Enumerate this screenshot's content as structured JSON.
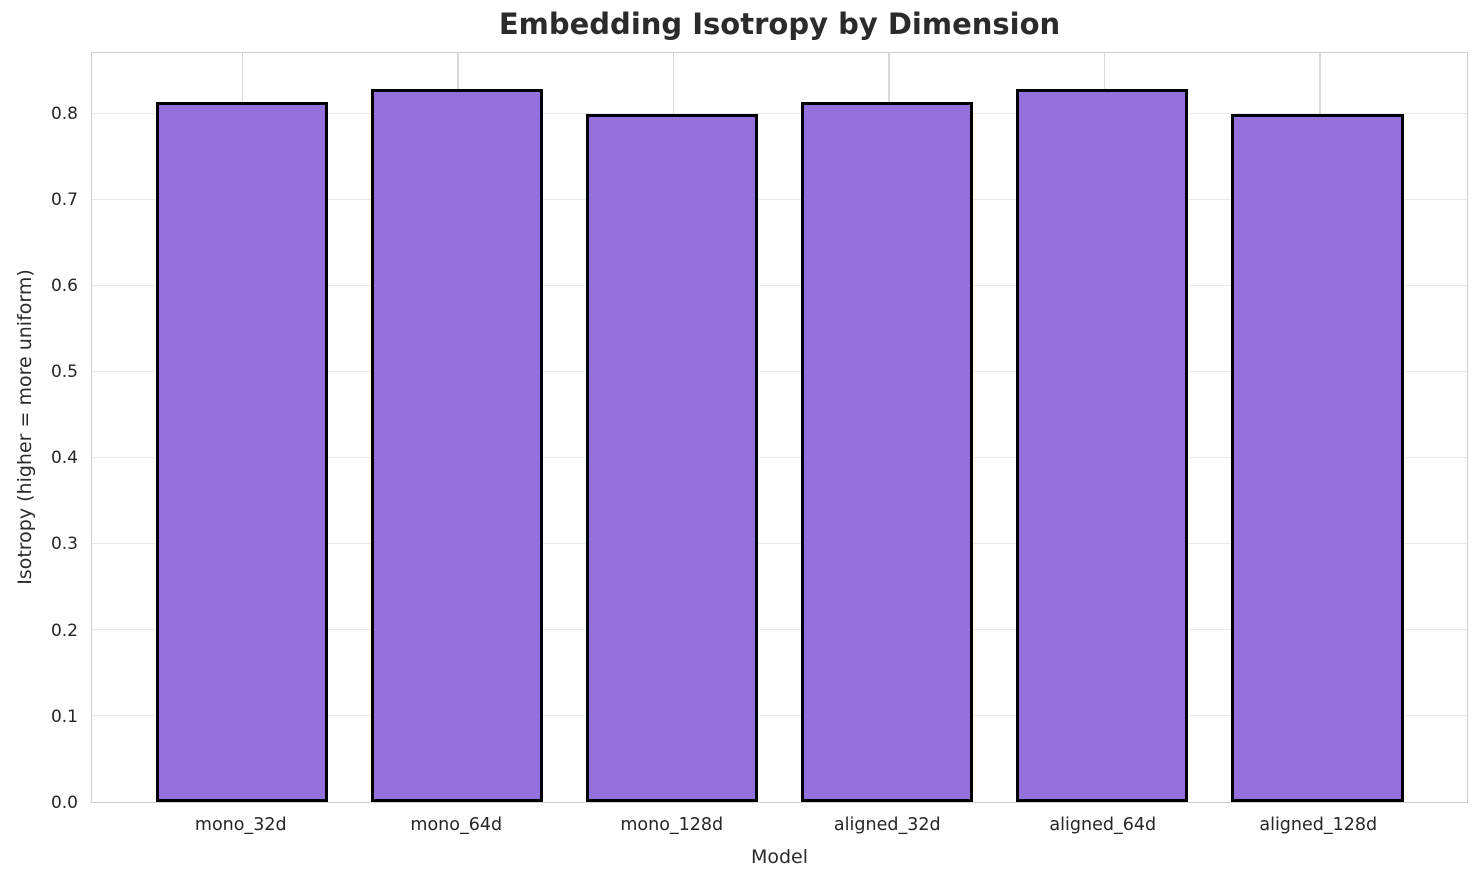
{
  "chart_data": {
    "type": "bar",
    "title": "Embedding Isotropy by Dimension",
    "xlabel": "Model",
    "ylabel": "Isotropy (higher = more uniform)",
    "categories": [
      "mono_32d",
      "mono_64d",
      "mono_128d",
      "aligned_32d",
      "aligned_64d",
      "aligned_128d"
    ],
    "values": [
      0.815,
      0.83,
      0.8,
      0.815,
      0.83,
      0.8
    ],
    "ylim": [
      0,
      0.8715
    ],
    "yticks": [
      0.0,
      0.1,
      0.2,
      0.3,
      0.4,
      0.5,
      0.6,
      0.7,
      0.8
    ],
    "ytick_labels": [
      "0.0",
      "0.1",
      "0.2",
      "0.3",
      "0.4",
      "0.5",
      "0.6",
      "0.7",
      "0.8"
    ],
    "grid": "on",
    "legend": "none",
    "bar_color": "#9370db",
    "bar_edge_color": "#000000",
    "background_color": "#ffffff"
  }
}
